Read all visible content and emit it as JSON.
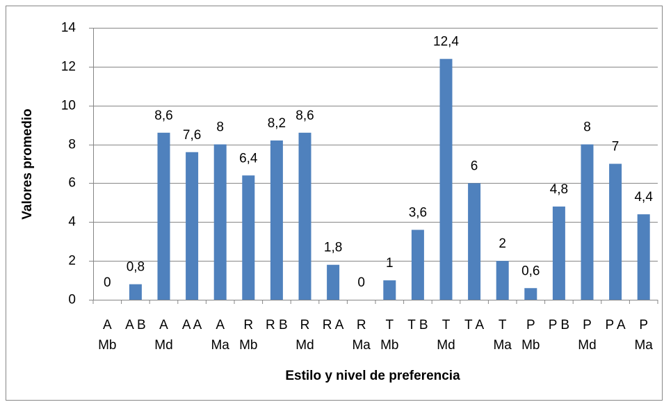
{
  "chart_data": {
    "type": "bar",
    "x_label": "Estilo y nivel de preferencia",
    "y_label": "Valores promedio",
    "categories": [
      "A Mb",
      "A B",
      "A Md",
      "A A",
      "A Ma",
      "R Mb",
      "R B",
      "R Md",
      "R A",
      "R Ma",
      "T Mb",
      "T B",
      "T Md",
      "T A",
      "T Ma",
      "P Mb",
      "P B",
      "P Md",
      "P A",
      "P Ma"
    ],
    "values": [
      0,
      0.8,
      8.6,
      7.6,
      8,
      6.4,
      8.2,
      8.6,
      1.8,
      0,
      1,
      3.6,
      12.4,
      6,
      2,
      0.6,
      4.8,
      8,
      7,
      4.4
    ],
    "value_labels": [
      "0",
      "0,8",
      "8,6",
      "7,6",
      "8",
      "6,4",
      "8,2",
      "8,6",
      "1,8",
      "0",
      "1",
      "3,6",
      "12,4",
      "6",
      "2",
      "0,6",
      "4,8",
      "8",
      "7",
      "4,4"
    ],
    "color": "#4f81bd",
    "ylim": [
      0,
      14
    ],
    "yticks": [
      0,
      2,
      4,
      6,
      8,
      10,
      12,
      14
    ],
    "grid": true
  }
}
